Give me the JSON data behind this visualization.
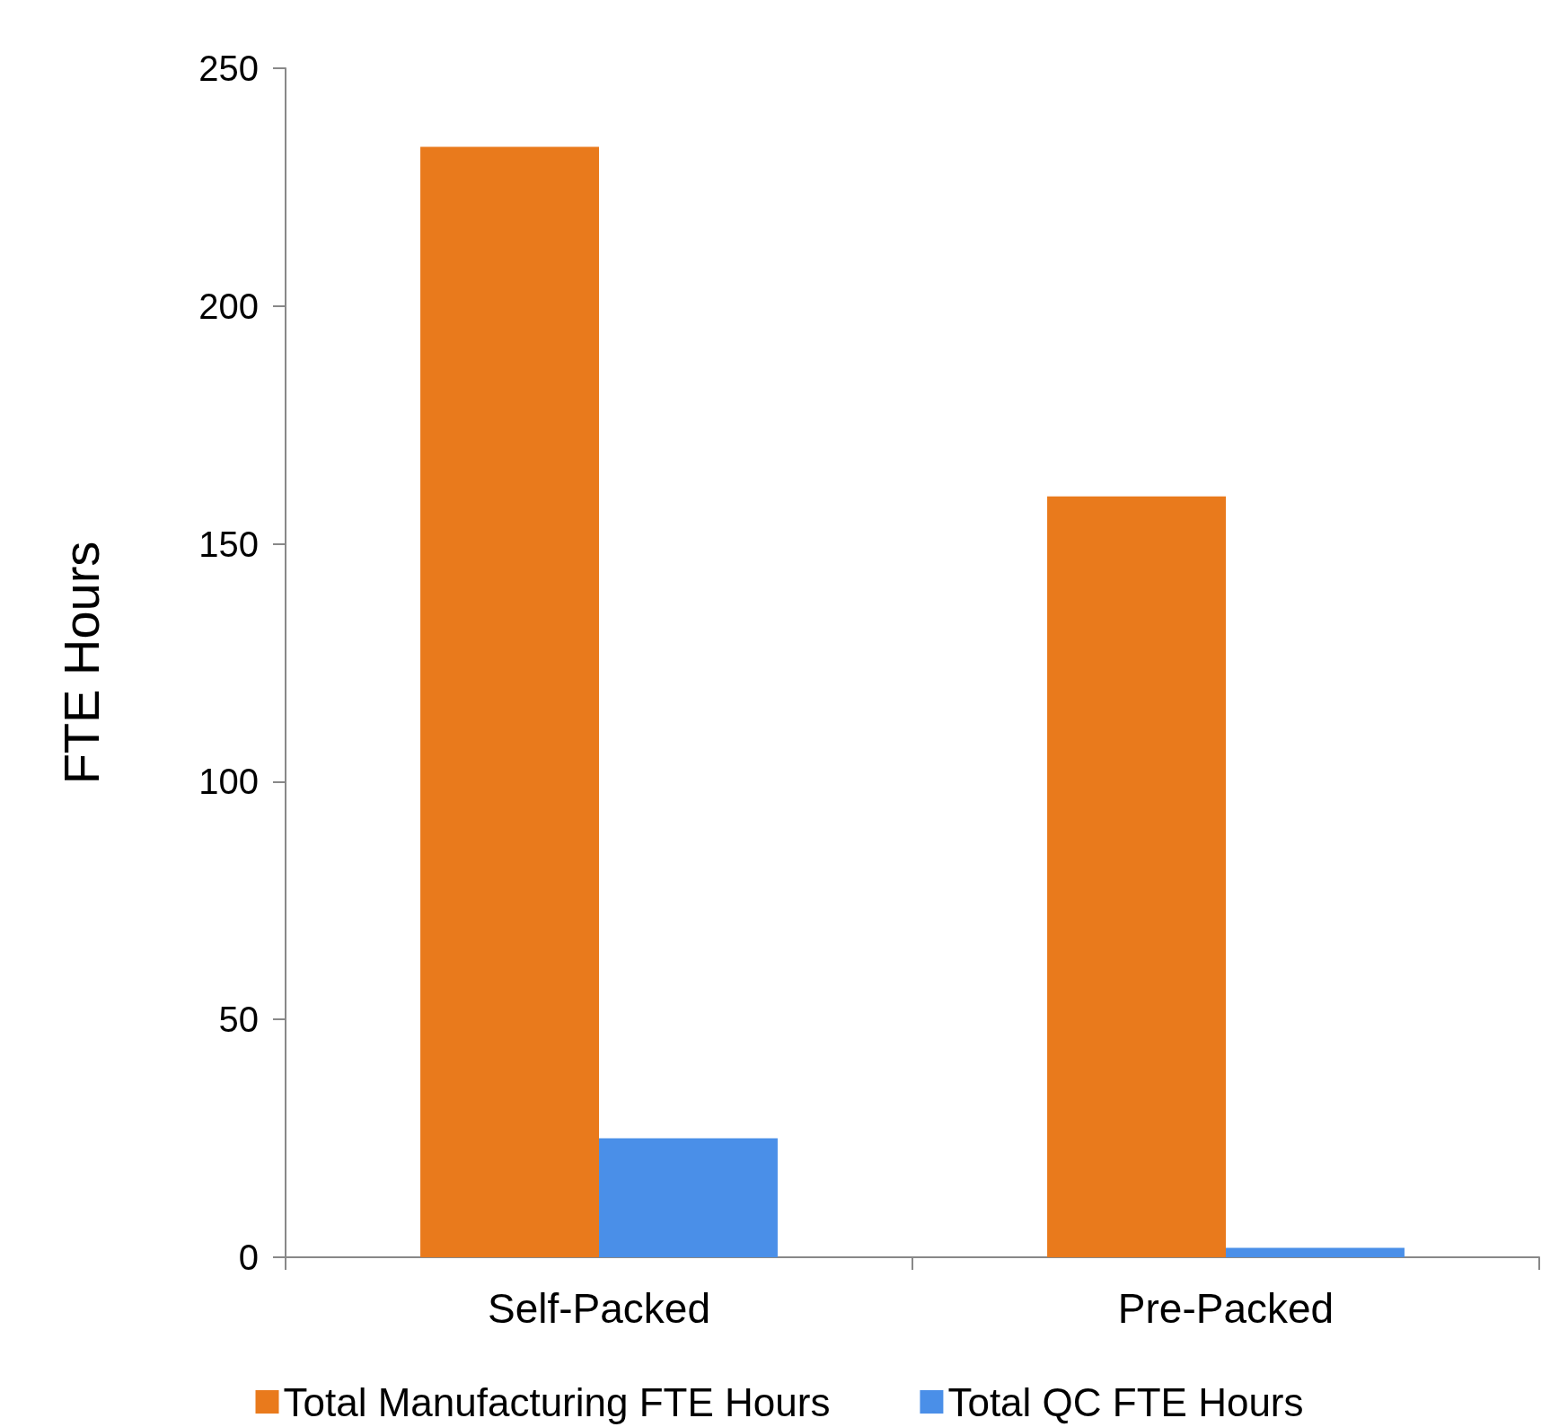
{
  "chart_data": {
    "type": "bar",
    "ylabel": "FTE Hours",
    "categories": [
      "Self-Packed",
      "Pre-Packed"
    ],
    "series": [
      {
        "name": "Total Manufacturing FTE Hours",
        "color": "#e97a1c",
        "values": [
          233.5,
          160
        ]
      },
      {
        "name": "Total QC FTE Hours",
        "color": "#4a8fe8",
        "values": [
          25,
          2
        ]
      }
    ],
    "ylim": [
      0,
      250
    ],
    "yticks": [
      0,
      50,
      100,
      150,
      200,
      250
    ],
    "grid": false,
    "legend": "bottom"
  }
}
